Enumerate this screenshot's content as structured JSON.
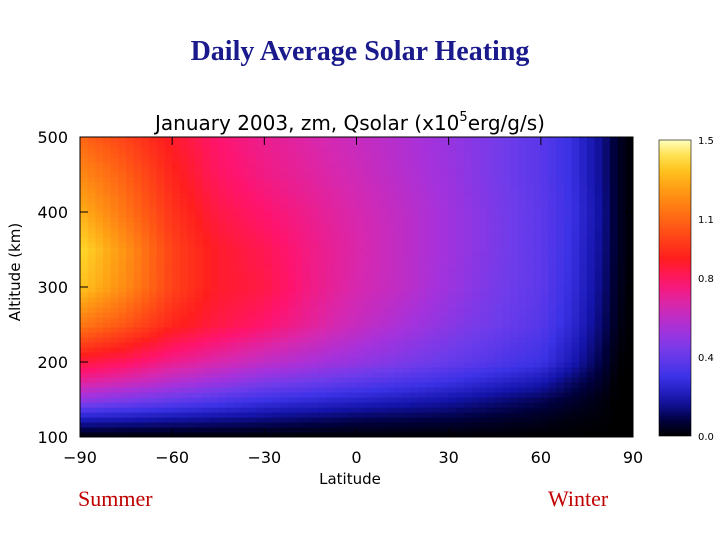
{
  "slide": {
    "title": "Daily Average Solar Heating",
    "note_left": "Summer",
    "note_right": "Winter"
  },
  "chart_data": {
    "type": "heatmap",
    "title_main": "January 2003, zm, Qsolar (x10",
    "title_exp": "5",
    "title_unit": "erg/g/s)",
    "xlabel": "Latitude",
    "ylabel": "Altitude (km)",
    "xlim": [
      -90,
      90
    ],
    "ylim": [
      100,
      500
    ],
    "x_ticks": [
      -90,
      -60,
      -30,
      0,
      30,
      60,
      90
    ],
    "y_ticks": [
      100,
      200,
      300,
      400,
      500
    ],
    "colorbar": {
      "range": [
        0.0,
        1.5
      ],
      "ticks": [
        "1.5",
        "1.1",
        "0.8",
        "0.4",
        "0.0"
      ],
      "tick_values": [
        1.5,
        1.1,
        0.8,
        0.4,
        0.0
      ]
    },
    "x_lat": [
      -90,
      -75,
      -60,
      -45,
      -30,
      -15,
      0,
      15,
      30,
      45,
      60,
      70,
      80,
      85,
      90
    ],
    "y_alt": [
      100,
      125,
      150,
      175,
      200,
      250,
      300,
      350,
      400,
      450,
      500
    ],
    "z": [
      [
        0.0,
        0.0,
        0.0,
        0.0,
        0.0,
        0.0,
        0.0,
        0.0,
        0.0,
        0.0,
        0.0,
        0.0,
        0.0,
        0.0,
        0.0
      ],
      [
        0.22,
        0.2,
        0.18,
        0.16,
        0.14,
        0.12,
        0.1,
        0.09,
        0.08,
        0.06,
        0.04,
        0.02,
        0.01,
        0.0,
        0.0
      ],
      [
        0.5,
        0.45,
        0.4,
        0.35,
        0.3,
        0.27,
        0.24,
        0.21,
        0.18,
        0.14,
        0.1,
        0.06,
        0.02,
        0.0,
        0.0
      ],
      [
        0.7,
        0.65,
        0.58,
        0.52,
        0.46,
        0.42,
        0.38,
        0.34,
        0.3,
        0.25,
        0.2,
        0.12,
        0.05,
        0.0,
        0.0
      ],
      [
        0.85,
        0.8,
        0.72,
        0.66,
        0.6,
        0.55,
        0.5,
        0.45,
        0.4,
        0.35,
        0.3,
        0.2,
        0.08,
        0.01,
        0.0
      ],
      [
        1.15,
        1.05,
        0.92,
        0.84,
        0.78,
        0.7,
        0.62,
        0.55,
        0.48,
        0.42,
        0.36,
        0.26,
        0.12,
        0.03,
        0.0
      ],
      [
        1.35,
        1.2,
        1.0,
        0.88,
        0.84,
        0.74,
        0.66,
        0.6,
        0.52,
        0.44,
        0.38,
        0.28,
        0.14,
        0.04,
        0.0
      ],
      [
        1.4,
        1.22,
        1.0,
        0.88,
        0.82,
        0.74,
        0.67,
        0.6,
        0.53,
        0.45,
        0.38,
        0.29,
        0.15,
        0.05,
        0.0
      ],
      [
        1.3,
        1.14,
        0.96,
        0.84,
        0.78,
        0.72,
        0.66,
        0.6,
        0.53,
        0.45,
        0.38,
        0.3,
        0.16,
        0.05,
        0.0
      ],
      [
        1.2,
        1.08,
        0.92,
        0.8,
        0.74,
        0.69,
        0.64,
        0.58,
        0.52,
        0.44,
        0.37,
        0.29,
        0.15,
        0.05,
        0.0
      ],
      [
        1.1,
        1.0,
        0.88,
        0.78,
        0.72,
        0.67,
        0.62,
        0.57,
        0.51,
        0.44,
        0.37,
        0.29,
        0.15,
        0.05,
        0.0
      ]
    ]
  }
}
